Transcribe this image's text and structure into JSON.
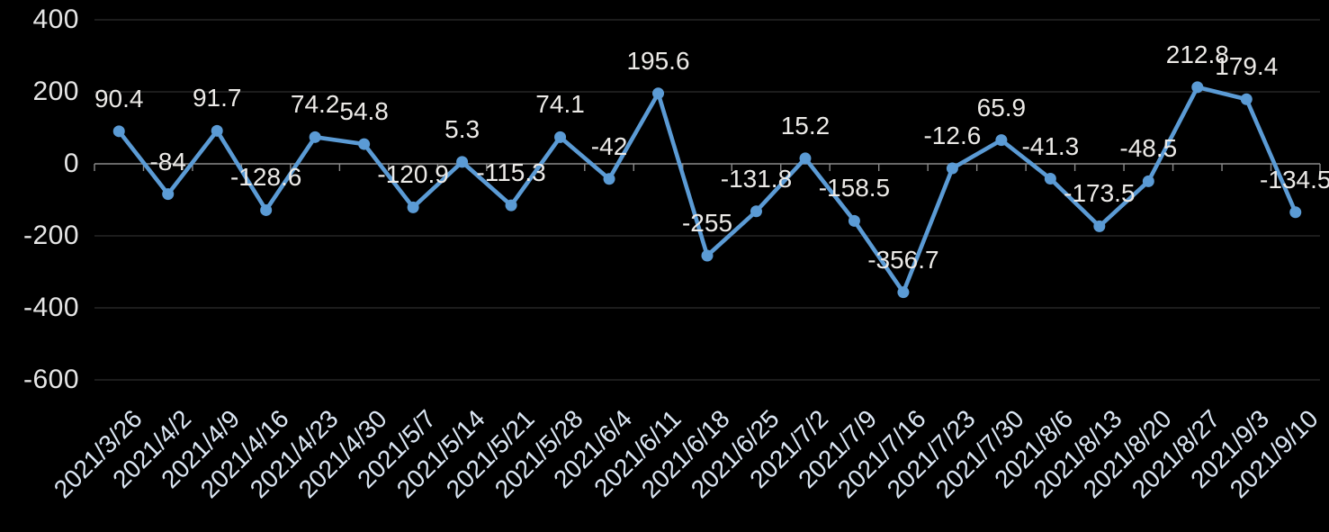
{
  "chart_data": {
    "type": "line",
    "title": "",
    "xlabel": "",
    "ylabel": "",
    "x": [
      "2021/3/26",
      "2021/4/2",
      "2021/4/9",
      "2021/4/16",
      "2021/4/23",
      "2021/4/30",
      "2021/5/7",
      "2021/5/14",
      "2021/5/21",
      "2021/5/28",
      "2021/6/4",
      "2021/6/11",
      "2021/6/18",
      "2021/6/25",
      "2021/7/2",
      "2021/7/9",
      "2021/7/16",
      "2021/7/23",
      "2021/7/30",
      "2021/8/6",
      "2021/8/13",
      "2021/8/20",
      "2021/8/27",
      "2021/9/3",
      "2021/9/10"
    ],
    "series": [
      {
        "name": "",
        "values": [
          90.4,
          -84,
          91.7,
          -128.6,
          74.2,
          54.8,
          -120.9,
          5.3,
          -115.3,
          74.1,
          -42,
          195.6,
          -255,
          -131.8,
          15.2,
          -158.5,
          -356.7,
          -12.6,
          65.9,
          -41.3,
          -173.5,
          -48.5,
          212.8,
          179.4,
          -134.5
        ]
      }
    ],
    "data_labels_visible": true,
    "ylim": [
      -600,
      400
    ],
    "yticks": [
      400,
      200,
      0,
      -200,
      -400,
      -600
    ],
    "grid": "horizontal",
    "legend": "none",
    "x_label_rotation_deg": 45
  },
  "colors": {
    "background": "#000000",
    "series_line": "#5B9BD5",
    "marker_fill": "#5B9BD5",
    "gridline": "#2d2d2d",
    "axis_line": "#8a8a8a",
    "tick_mark": "#8a8a8a",
    "data_label_text": "#eceae7",
    "y_axis_text": "#e6e6e6",
    "x_axis_text": "#dbe6f3"
  }
}
